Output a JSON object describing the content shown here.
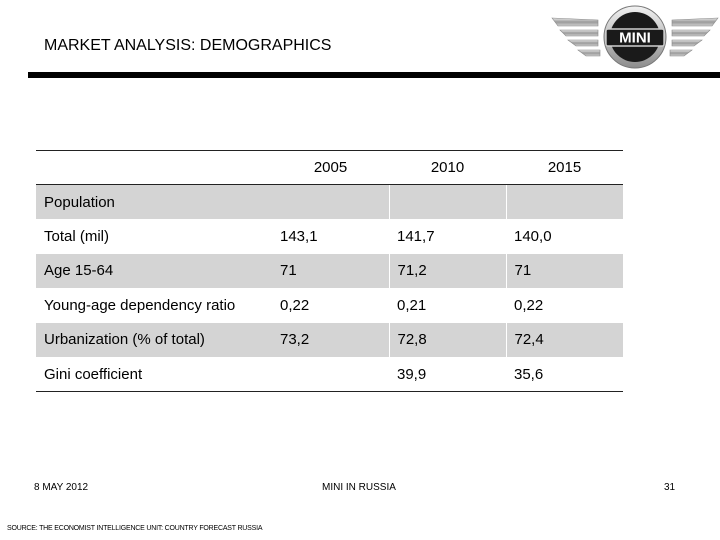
{
  "slide": {
    "title": "MARKET ANALYSIS: DEMOGRAPHICS",
    "logo_text": "MINI"
  },
  "table": {
    "columns": [
      "",
      "2005",
      "2010",
      "2015"
    ],
    "rows": [
      {
        "label": "Population",
        "values": [
          "",
          "",
          ""
        ],
        "shaded": true
      },
      {
        "label": "Total (mil)",
        "values": [
          "143,1",
          "141,7",
          "140,0"
        ],
        "shaded": false
      },
      {
        "label": "Age 15-64",
        "values": [
          "71",
          "71,2",
          "71"
        ],
        "shaded": true
      },
      {
        "label": "Young-age dependency ratio",
        "values": [
          "0,22",
          "0,21",
          "0,22"
        ],
        "shaded": false
      },
      {
        "label": "Urbanization (% of total)",
        "values": [
          "73,2",
          "72,8",
          "72,4"
        ],
        "shaded": true
      },
      {
        "label": "Gini coefficient",
        "values": [
          "",
          "39,9",
          "35,6"
        ],
        "shaded": false
      }
    ]
  },
  "footer": {
    "date": "8 MAY 2012",
    "source": "SOURCE: THE ECONOMIST INTELLIGENCE UNIT: COUNTRY FORECAST RUSSIA",
    "center": "MINI IN RUSSIA",
    "page": "31"
  }
}
